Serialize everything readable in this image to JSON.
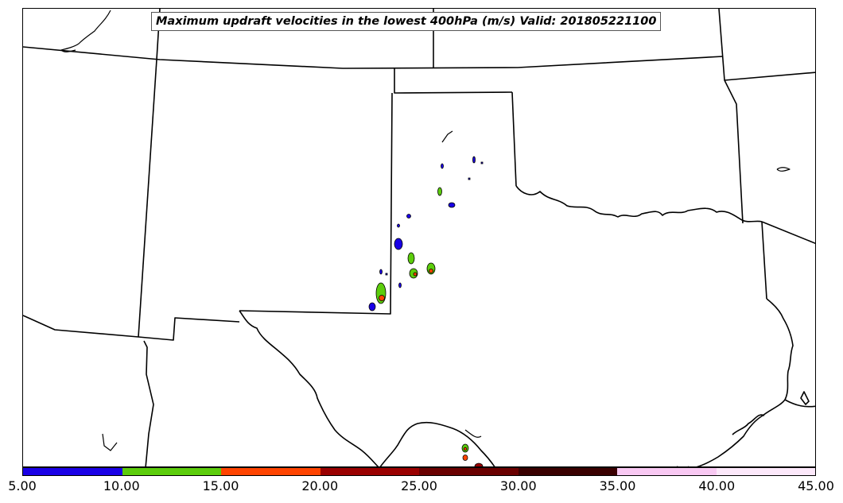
{
  "title": "Maximum updraft velocities in the lowest 400hPa (m/s) Valid: 201805221100",
  "colorbar": {
    "ticks": [
      "5.00",
      "10.00",
      "15.00",
      "20.00",
      "25.00",
      "30.00",
      "35.00",
      "40.00",
      "45.00"
    ],
    "colors": [
      "#1a00e6",
      "#5ccd0c",
      "#ff4400",
      "#9a0000",
      "#6a0000",
      "#3a0000",
      "#f8c8f2",
      "#fce8fa"
    ]
  }
}
